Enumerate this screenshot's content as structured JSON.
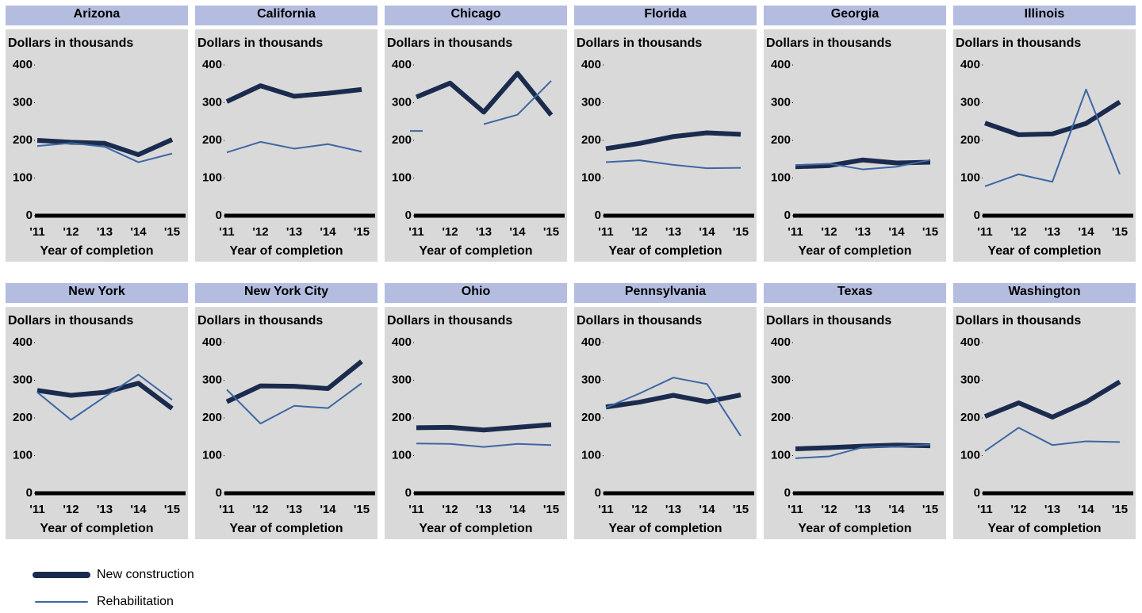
{
  "chart_data": [
    {
      "type": "line",
      "title": "Arizona",
      "ylabel": "Dollars in thousands",
      "xlabel": "Year of completion",
      "categories": [
        "'11",
        "'12",
        "'13",
        "'14",
        "'15"
      ],
      "ylim": [
        0,
        400
      ],
      "yticks": [
        0,
        100,
        200,
        300,
        400
      ],
      "series": [
        {
          "name": "New construction",
          "color": "#1a2b4e",
          "values": [
            200,
            195,
            192,
            162,
            202
          ]
        },
        {
          "name": "Rehabilitation",
          "color": "#3e66a4",
          "values": [
            185,
            193,
            183,
            142,
            165
          ]
        }
      ]
    },
    {
      "type": "line",
      "title": "California",
      "ylabel": "Dollars in thousands",
      "xlabel": "Year of completion",
      "categories": [
        "'11",
        "'12",
        "'13",
        "'14",
        "'15"
      ],
      "ylim": [
        0,
        400
      ],
      "yticks": [
        0,
        100,
        200,
        300,
        400
      ],
      "series": [
        {
          "name": "New construction",
          "color": "#1a2b4e",
          "values": [
            303,
            345,
            317,
            325,
            335
          ]
        },
        {
          "name": "Rehabilitation",
          "color": "#3e66a4",
          "values": [
            168,
            196,
            178,
            190,
            170
          ]
        }
      ]
    },
    {
      "type": "line",
      "title": "Chicago",
      "ylabel": "Dollars in thousands",
      "xlabel": "Year of completion",
      "categories": [
        "'11",
        "'12",
        "'13",
        "'14",
        "'15"
      ],
      "ylim": [
        0,
        400
      ],
      "yticks": [
        0,
        100,
        200,
        300,
        400
      ],
      "series": [
        {
          "name": "New construction",
          "color": "#1a2b4e",
          "values": [
            315,
            352,
            275,
            378,
            267
          ]
        },
        {
          "name": "Rehabilitation",
          "color": "#3e66a4",
          "values": [
            225,
            null,
            243,
            268,
            358
          ]
        }
      ]
    },
    {
      "type": "line",
      "title": "Florida",
      "ylabel": "Dollars in thousands",
      "xlabel": "Year of completion",
      "categories": [
        "'11",
        "'12",
        "'13",
        "'14",
        "'15"
      ],
      "ylim": [
        0,
        400
      ],
      "yticks": [
        0,
        100,
        200,
        300,
        400
      ],
      "series": [
        {
          "name": "New construction",
          "color": "#1a2b4e",
          "values": [
            178,
            192,
            210,
            220,
            216
          ]
        },
        {
          "name": "Rehabilitation",
          "color": "#3e66a4",
          "values": [
            142,
            147,
            135,
            126,
            127
          ]
        }
      ]
    },
    {
      "type": "line",
      "title": "Georgia",
      "ylabel": "Dollars in thousands",
      "xlabel": "Year of completion",
      "categories": [
        "'11",
        "'12",
        "'13",
        "'14",
        "'15"
      ],
      "ylim": [
        0,
        400
      ],
      "yticks": [
        0,
        100,
        200,
        300,
        400
      ],
      "series": [
        {
          "name": "New construction",
          "color": "#1a2b4e",
          "values": [
            130,
            133,
            148,
            140,
            142
          ]
        },
        {
          "name": "Rehabilitation",
          "color": "#3e66a4",
          "values": [
            134,
            138,
            123,
            130,
            148
          ]
        }
      ]
    },
    {
      "type": "line",
      "title": "Illinois",
      "ylabel": "Dollars in thousands",
      "xlabel": "Year of completion",
      "categories": [
        "'11",
        "'12",
        "'13",
        "'14",
        "'15"
      ],
      "ylim": [
        0,
        400
      ],
      "yticks": [
        0,
        100,
        200,
        300,
        400
      ],
      "series": [
        {
          "name": "New construction",
          "color": "#1a2b4e",
          "values": [
            246,
            215,
            217,
            245,
            302
          ]
        },
        {
          "name": "Rehabilitation",
          "color": "#3e66a4",
          "values": [
            78,
            110,
            90,
            335,
            110
          ]
        }
      ]
    },
    {
      "type": "line",
      "title": "New York",
      "ylabel": "Dollars in thousands",
      "xlabel": "Year of completion",
      "categories": [
        "'11",
        "'12",
        "'13",
        "'14",
        "'15"
      ],
      "ylim": [
        0,
        400
      ],
      "yticks": [
        0,
        100,
        200,
        300,
        400
      ],
      "series": [
        {
          "name": "New construction",
          "color": "#1a2b4e",
          "values": [
            273,
            260,
            268,
            292,
            225
          ]
        },
        {
          "name": "Rehabilitation",
          "color": "#3e66a4",
          "values": [
            268,
            195,
            256,
            315,
            248
          ]
        }
      ]
    },
    {
      "type": "line",
      "title": "New York City",
      "ylabel": "Dollars in thousands",
      "xlabel": "Year of completion",
      "categories": [
        "'11",
        "'12",
        "'13",
        "'14",
        "'15"
      ],
      "ylim": [
        0,
        400
      ],
      "yticks": [
        0,
        100,
        200,
        300,
        400
      ],
      "series": [
        {
          "name": "New construction",
          "color": "#1a2b4e",
          "values": [
            243,
            285,
            284,
            278,
            350
          ]
        },
        {
          "name": "Rehabilitation",
          "color": "#3e66a4",
          "values": [
            275,
            185,
            232,
            226,
            292
          ]
        }
      ]
    },
    {
      "type": "line",
      "title": "Ohio",
      "ylabel": "Dollars in thousands",
      "xlabel": "Year of completion",
      "categories": [
        "'11",
        "'12",
        "'13",
        "'14",
        "'15"
      ],
      "ylim": [
        0,
        400
      ],
      "yticks": [
        0,
        100,
        200,
        300,
        400
      ],
      "series": [
        {
          "name": "New construction",
          "color": "#1a2b4e",
          "values": [
            174,
            175,
            168,
            175,
            182
          ]
        },
        {
          "name": "Rehabilitation",
          "color": "#3e66a4",
          "values": [
            132,
            131,
            123,
            131,
            128
          ]
        }
      ]
    },
    {
      "type": "line",
      "title": "Pennsylvania",
      "ylabel": "Dollars in thousands",
      "xlabel": "Year of completion",
      "categories": [
        "'11",
        "'12",
        "'13",
        "'14",
        "'15"
      ],
      "ylim": [
        0,
        400
      ],
      "yticks": [
        0,
        100,
        200,
        300,
        400
      ],
      "series": [
        {
          "name": "New construction",
          "color": "#1a2b4e",
          "values": [
            229,
            242,
            260,
            243,
            261
          ]
        },
        {
          "name": "Rehabilitation",
          "color": "#3e66a4",
          "values": [
            227,
            265,
            307,
            290,
            152
          ]
        }
      ]
    },
    {
      "type": "line",
      "title": "Texas",
      "ylabel": "Dollars in thousands",
      "xlabel": "Year of completion",
      "categories": [
        "'11",
        "'12",
        "'13",
        "'14",
        "'15"
      ],
      "ylim": [
        0,
        400
      ],
      "yticks": [
        0,
        100,
        200,
        300,
        400
      ],
      "series": [
        {
          "name": "New construction",
          "color": "#1a2b4e",
          "values": [
            118,
            121,
            125,
            128,
            126
          ]
        },
        {
          "name": "Rehabilitation",
          "color": "#3e66a4",
          "values": [
            93,
            98,
            122,
            124,
            129
          ]
        }
      ]
    },
    {
      "type": "line",
      "title": "Washington",
      "ylabel": "Dollars in thousands",
      "xlabel": "Year of completion",
      "categories": [
        "'11",
        "'12",
        "'13",
        "'14",
        "'15"
      ],
      "ylim": [
        0,
        400
      ],
      "yticks": [
        0,
        100,
        200,
        300,
        400
      ],
      "series": [
        {
          "name": "New construction",
          "color": "#1a2b4e",
          "values": [
            204,
            240,
            202,
            242,
            296
          ]
        },
        {
          "name": "Rehabilitation",
          "color": "#3e66a4",
          "values": [
            112,
            174,
            128,
            138,
            136
          ]
        }
      ]
    }
  ]
}
